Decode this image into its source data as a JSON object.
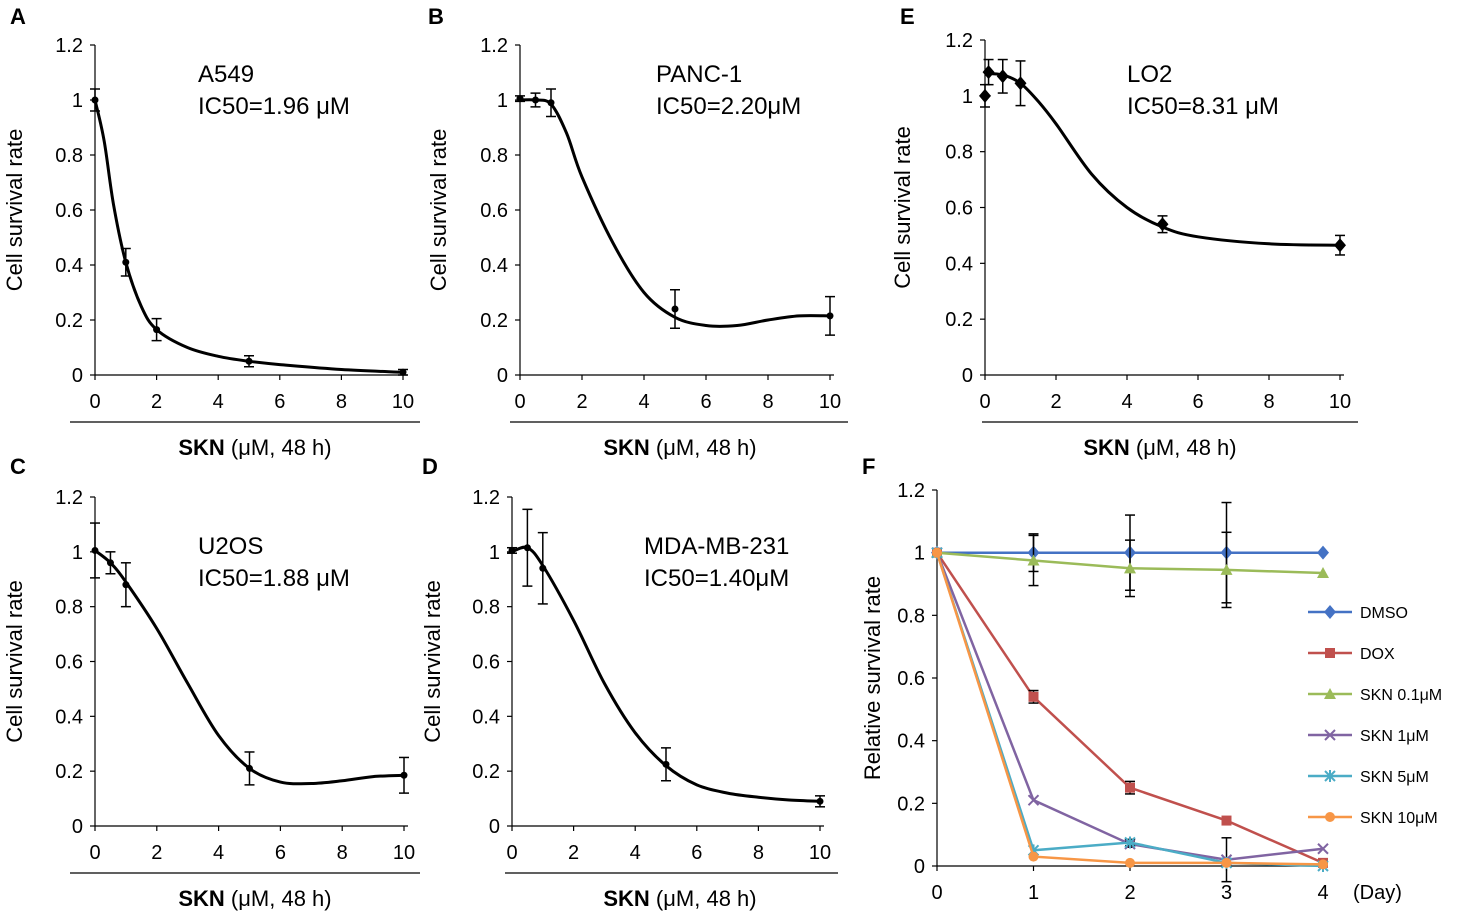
{
  "figure": {
    "x_caption_bold": "SKN",
    "x_caption_rest": " (μM, 48 h)",
    "y_caption": "Cell survival rate"
  },
  "chart_data": [
    {
      "panel": "A",
      "type": "line",
      "cell_line": "A549",
      "ic50_label": "IC50=1.96 μM",
      "xlabel": "SKN (μM, 48 h)",
      "ylabel": "Cell survival rate",
      "xlim": [
        0,
        10
      ],
      "ylim": [
        0,
        1.2
      ],
      "xticks": [
        "0",
        "2",
        "4",
        "6",
        "8",
        "10"
      ],
      "yticks": [
        "0",
        "0.2",
        "0.4",
        "0.6",
        "0.8",
        "1",
        "1.2"
      ],
      "marker": "dot",
      "x": [
        0,
        1,
        2,
        5,
        10
      ],
      "y": [
        1.0,
        0.41,
        0.165,
        0.05,
        0.01
      ],
      "err": [
        0.04,
        0.05,
        0.04,
        0.02,
        0.01
      ],
      "fit_curve": [
        [
          0,
          1.0
        ],
        [
          0.3,
          0.85
        ],
        [
          0.6,
          0.62
        ],
        [
          1,
          0.41
        ],
        [
          1.5,
          0.25
        ],
        [
          2,
          0.165
        ],
        [
          3,
          0.1
        ],
        [
          4,
          0.068
        ],
        [
          5,
          0.05
        ],
        [
          6,
          0.038
        ],
        [
          8,
          0.02
        ],
        [
          10,
          0.01
        ]
      ]
    },
    {
      "panel": "B",
      "type": "line",
      "cell_line": "PANC-1",
      "ic50_label": "IC50=2.20μM",
      "xlabel": "SKN (μM, 48 h)",
      "ylabel": "Cell survival rate",
      "xlim": [
        0,
        10
      ],
      "ylim": [
        0,
        1.2
      ],
      "xticks": [
        "0",
        "2",
        "4",
        "6",
        "8",
        "10"
      ],
      "yticks": [
        "0",
        "0.2",
        "0.4",
        "0.6",
        "0.8",
        "1",
        "1.2"
      ],
      "marker": "dot",
      "x": [
        0,
        0.5,
        1,
        5,
        10
      ],
      "y": [
        1.005,
        1.0,
        0.99,
        0.24,
        0.215
      ],
      "err": [
        0.01,
        0.025,
        0.05,
        0.07,
        0.07
      ],
      "fit_curve": [
        [
          0,
          1.0
        ],
        [
          0.5,
          1.0
        ],
        [
          1,
          0.985
        ],
        [
          1.5,
          0.88
        ],
        [
          2,
          0.72
        ],
        [
          3,
          0.48
        ],
        [
          4,
          0.3
        ],
        [
          5,
          0.21
        ],
        [
          6,
          0.18
        ],
        [
          7,
          0.18
        ],
        [
          8,
          0.2
        ],
        [
          9,
          0.215
        ],
        [
          10,
          0.215
        ]
      ]
    },
    {
      "panel": "E",
      "type": "line",
      "cell_line": "LO2",
      "ic50_label": "IC50=8.31 μM",
      "xlabel": "SKN (μM, 48 h)",
      "ylabel": "Cell survival rate",
      "xlim": [
        0,
        10
      ],
      "ylim": [
        0,
        1.2
      ],
      "xticks": [
        "0",
        "2",
        "4",
        "6",
        "8",
        "10"
      ],
      "yticks": [
        "0",
        "0.2",
        "0.4",
        "0.6",
        "0.8",
        "1",
        "1.2"
      ],
      "marker": "diamond",
      "x": [
        0,
        0.1,
        0.5,
        1,
        5,
        10
      ],
      "y": [
        1.0,
        1.085,
        1.07,
        1.045,
        0.54,
        0.465
      ],
      "err": [
        0.04,
        0.045,
        0.06,
        0.08,
        0.03,
        0.035
      ],
      "fit_curve": [
        [
          0,
          1.08
        ],
        [
          0.5,
          1.075
        ],
        [
          1,
          1.045
        ],
        [
          1.5,
          0.98
        ],
        [
          2,
          0.9
        ],
        [
          3,
          0.72
        ],
        [
          4,
          0.6
        ],
        [
          5,
          0.53
        ],
        [
          6,
          0.495
        ],
        [
          8,
          0.47
        ],
        [
          10,
          0.465
        ]
      ]
    },
    {
      "panel": "C",
      "type": "line",
      "cell_line": "U2OS",
      "ic50_label": "IC50=1.88 μM",
      "xlabel": "SKN (μM, 48 h)",
      "ylabel": "Cell survival rate",
      "xlim": [
        0,
        10
      ],
      "ylim": [
        0,
        1.2
      ],
      "xticks": [
        "0",
        "2",
        "4",
        "6",
        "8",
        "10"
      ],
      "yticks": [
        "0",
        "0.2",
        "0.4",
        "0.6",
        "0.8",
        "1",
        "1.2"
      ],
      "marker": "dot",
      "x": [
        0,
        0.5,
        1,
        5,
        10
      ],
      "y": [
        1.005,
        0.96,
        0.88,
        0.21,
        0.185
      ],
      "err": [
        0.1,
        0.04,
        0.08,
        0.06,
        0.065
      ],
      "fit_curve": [
        [
          0,
          1.005
        ],
        [
          0.5,
          0.96
        ],
        [
          1,
          0.89
        ],
        [
          2,
          0.72
        ],
        [
          3,
          0.52
        ],
        [
          4,
          0.33
        ],
        [
          5,
          0.21
        ],
        [
          6,
          0.16
        ],
        [
          7,
          0.155
        ],
        [
          8,
          0.165
        ],
        [
          9,
          0.18
        ],
        [
          10,
          0.185
        ]
      ]
    },
    {
      "panel": "D",
      "type": "line",
      "cell_line": "MDA-MB-231",
      "ic50_label": "IC50=1.40μM",
      "xlabel": "SKN (μM, 48 h)",
      "ylabel": "Cell survival rate",
      "xlim": [
        0,
        10
      ],
      "ylim": [
        0,
        1.2
      ],
      "xticks": [
        "0",
        "2",
        "4",
        "6",
        "8",
        "10"
      ],
      "yticks": [
        "0",
        "0.2",
        "0.4",
        "0.6",
        "0.8",
        "1",
        "1.2"
      ],
      "marker": "dot",
      "x": [
        0,
        0.5,
        1,
        5,
        10
      ],
      "y": [
        1.005,
        1.015,
        0.94,
        0.225,
        0.09
      ],
      "err": [
        0.01,
        0.14,
        0.13,
        0.06,
        0.02
      ],
      "fit_curve": [
        [
          0,
          1.0
        ],
        [
          0.5,
          1.015
        ],
        [
          1,
          0.95
        ],
        [
          2,
          0.75
        ],
        [
          3,
          0.52
        ],
        [
          4,
          0.34
        ],
        [
          5,
          0.22
        ],
        [
          6,
          0.15
        ],
        [
          7,
          0.12
        ],
        [
          8,
          0.105
        ],
        [
          9,
          0.095
        ],
        [
          10,
          0.09
        ]
      ]
    },
    {
      "panel": "F",
      "type": "line",
      "title": "",
      "xlabel": "(Day)",
      "ylabel": "Relative survival rate",
      "xlim": [
        0,
        4
      ],
      "ylim": [
        0,
        1.2
      ],
      "xticks": [
        "0",
        "1",
        "2",
        "3",
        "4"
      ],
      "yticks": [
        "0",
        "0.2",
        "0.4",
        "0.6",
        "0.8",
        "1",
        "1.2"
      ],
      "legend_position": "right",
      "categories": [
        0,
        1,
        2,
        3,
        4
      ],
      "series": [
        {
          "name": "DMSO",
          "color": "#4472c4",
          "marker": "diamond",
          "values": [
            1.0,
            1.0,
            1.0,
            1.0,
            1.0
          ],
          "err": [
            0,
            0.06,
            0.12,
            0.16,
            0
          ]
        },
        {
          "name": "DOX",
          "color": "#c0504d",
          "marker": "square",
          "values": [
            1.0,
            0.54,
            0.25,
            0.145,
            0.01
          ],
          "err": [
            0,
            0.02,
            0.02,
            0,
            0
          ]
        },
        {
          "name": "SKN 0.1μM",
          "color": "#9bbb59",
          "marker": "triangle",
          "values": [
            1.0,
            0.975,
            0.95,
            0.945,
            0.935
          ],
          "err": [
            0,
            0.08,
            0.09,
            0.12,
            0
          ]
        },
        {
          "name": "SKN 1μM",
          "color": "#8064a2",
          "marker": "x",
          "values": [
            1.0,
            0.21,
            0.07,
            0.02,
            0.055
          ],
          "err": [
            0,
            0,
            0.01,
            0.07,
            0
          ]
        },
        {
          "name": "SKN 5μM",
          "color": "#4bacc6",
          "marker": "star",
          "values": [
            1.0,
            0.05,
            0.075,
            0.01,
            0.0
          ],
          "err": [
            0,
            0,
            0.01,
            0,
            0
          ]
        },
        {
          "name": "SKN 10μM",
          "color": "#f79646",
          "marker": "circle",
          "values": [
            1.0,
            0.03,
            0.01,
            0.01,
            0.005
          ],
          "err": [
            0,
            0,
            0,
            0,
            0
          ]
        }
      ]
    }
  ]
}
